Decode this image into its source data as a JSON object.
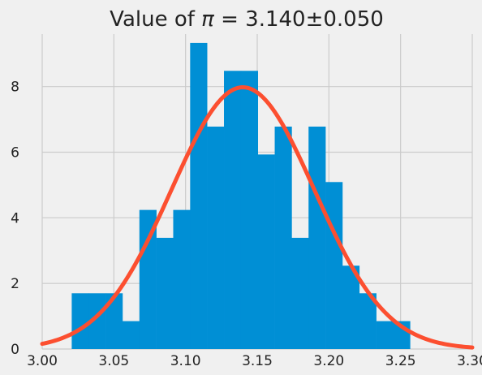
{
  "chart_data": {
    "type": "bar",
    "title": "Value of π = 3.140±0.050",
    "title_parts": {
      "prefix": "Value of ",
      "symbol": "π",
      "equals": " = ",
      "value": "3.140±0.050"
    },
    "xlabel": "",
    "ylabel": "",
    "xlim": [
      3.0,
      3.3
    ],
    "ylim": [
      0,
      9.6
    ],
    "xticks": [
      3.0,
      3.05,
      3.1,
      3.15,
      3.2,
      3.25,
      3.3
    ],
    "xtick_labels": [
      "3.00",
      "3.05",
      "3.10",
      "3.15",
      "3.20",
      "3.25",
      "3.30"
    ],
    "yticks": [
      0,
      2,
      4,
      6,
      8
    ],
    "ytick_labels": [
      "0",
      "2",
      "4",
      "6",
      "8"
    ],
    "grid": true,
    "histogram": {
      "bin_edges": [
        3.0206,
        3.0324,
        3.0442,
        3.056,
        3.0678,
        3.0796,
        3.0914,
        3.1032,
        3.115,
        3.1268,
        3.1386,
        3.1504,
        3.1622,
        3.174,
        3.1858,
        3.1976,
        3.2094,
        3.2212,
        3.233,
        3.2448,
        3.2566
      ],
      "values": [
        1.7,
        1.7,
        1.7,
        0.85,
        4.24,
        3.39,
        4.24,
        9.33,
        6.78,
        8.48,
        8.48,
        5.93,
        6.78,
        3.39,
        6.78,
        5.09,
        2.54,
        1.7,
        0.85,
        0.85
      ],
      "color": "#008fd5"
    },
    "fit_curve": {
      "type": "normal_pdf",
      "mean": 3.14,
      "std": 0.05,
      "x_range": [
        3.0,
        3.3
      ],
      "color": "#fc4f30"
    },
    "colors": {
      "background": "#f0f0f0",
      "grid": "#cbcbcb",
      "text": "#222222"
    }
  }
}
